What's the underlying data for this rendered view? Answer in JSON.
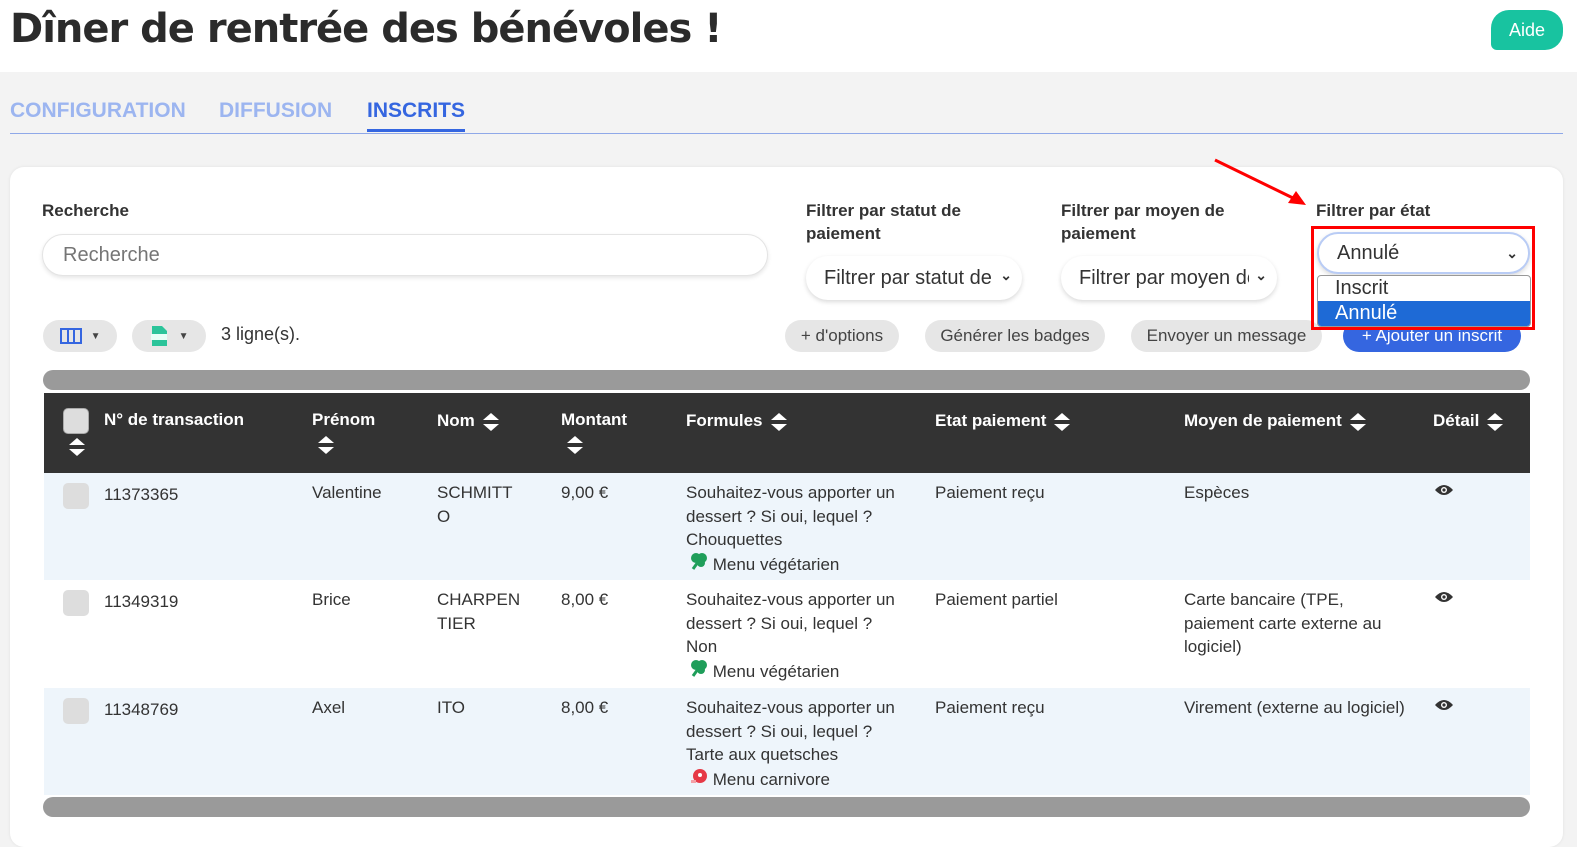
{
  "header": {
    "title": "Dîner de rentrée des bénévoles !",
    "help": "Aide"
  },
  "tabs": [
    {
      "label": "CONFIGURATION"
    },
    {
      "label": "DIFFUSION"
    },
    {
      "label": "INSCRITS",
      "active": true
    }
  ],
  "filters": {
    "search_label": "Recherche",
    "search_placeholder": "Recherche",
    "statut_label": "Filtrer par statut de paiement",
    "statut_value": "Filtrer par statut de paiement",
    "moyen_label": "Filtrer par moyen de paiement",
    "moyen_value": "Filtrer par moyen de paiement",
    "etat_label": "Filtrer par état",
    "etat_value": "Annulé",
    "etat_options": [
      "Inscrit",
      "Annulé"
    ]
  },
  "toolbar": {
    "row_count": "3 ligne(s).",
    "more_options": "+ d'options",
    "badges": "Générer les badges",
    "message": "Envoyer un message",
    "add": "+ Ajouter un inscrit"
  },
  "colors": {
    "accent": "#3566e0",
    "aide": "#18c3a0",
    "annotation": "#ff0000",
    "header_bg": "#333333"
  },
  "table": {
    "columns": [
      "N° de transaction",
      "Prénom",
      "Nom",
      "Montant",
      "Formules",
      "Etat paiement",
      "Moyen de paiement",
      "Détail"
    ],
    "rows": [
      {
        "id": "11373365",
        "prenom": "Valentine",
        "nom": "SCHMITTO",
        "montant": "9,00 €",
        "formule": "Souhaitez-vous apporter un dessert ? Si oui, lequel ? Chouquettes",
        "menu": "Menu végétarien",
        "menu_icon": "broccoli-icon",
        "etat": "Paiement reçu",
        "moyen": "Espèces"
      },
      {
        "id": "11349319",
        "prenom": "Brice",
        "nom": "CHARPENTIER",
        "montant": "8,00 €",
        "formule": "Souhaitez-vous apporter un dessert ? Si oui, lequel ? Non",
        "menu": "Menu végétarien",
        "menu_icon": "broccoli-icon",
        "etat": "Paiement partiel",
        "moyen": "Carte bancaire (TPE, paiement carte externe au logiciel)"
      },
      {
        "id": "11348769",
        "prenom": "Axel",
        "nom": "ITO",
        "montant": "8,00 €",
        "formule": "Souhaitez-vous apporter un dessert ? Si oui, lequel ? Tarte aux quetsches",
        "menu": "Menu carnivore",
        "menu_icon": "meat-icon",
        "etat": "Paiement reçu",
        "moyen": "Virement (externe au logiciel)"
      }
    ]
  }
}
